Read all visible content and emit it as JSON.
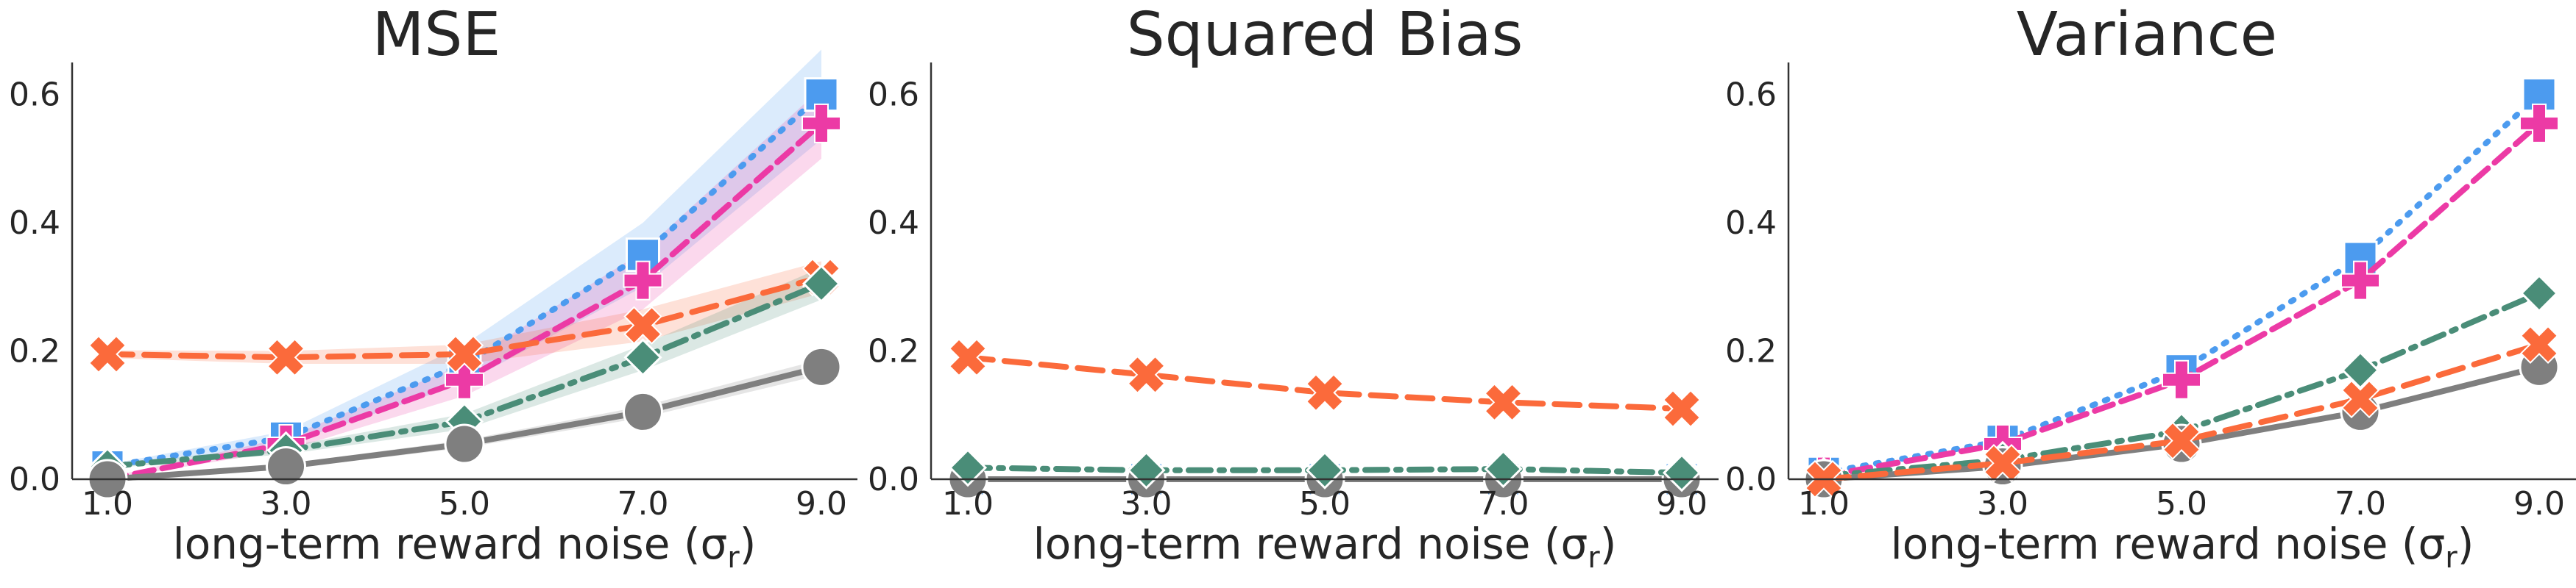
{
  "chart_data": [
    {
      "type": "line",
      "title": "MSE",
      "xlabel": "long-term reward noise (σ",
      "xlabel_sub": "r",
      "xlabel_close": ")",
      "x": [
        1.0,
        3.0,
        5.0,
        7.0,
        9.0
      ],
      "x_ticks": [
        "1.0",
        "3.0",
        "5.0",
        "7.0",
        "9.0"
      ],
      "y_ticks": [
        "0.0",
        "0.2",
        "0.4",
        "0.6"
      ],
      "y_tick_values": [
        0.0,
        0.2,
        0.4,
        0.6
      ],
      "ylim": [
        0,
        0.65
      ],
      "series": [
        {
          "color": "#4C9BEF",
          "dash": "dot",
          "marker": "square",
          "values": [
            0.02,
            0.065,
            0.18,
            0.35,
            0.6
          ],
          "band": [
            0.003,
            0.01,
            0.03,
            0.05,
            0.07
          ]
        },
        {
          "color": "#EC3AA5",
          "dash": "dash",
          "marker": "plus",
          "values": [
            0.0,
            0.055,
            0.155,
            0.31,
            0.555
          ],
          "band": [
            0.003,
            0.01,
            0.025,
            0.045,
            0.055
          ]
        },
        {
          "color": "#FB6A3B",
          "dash": "longdash",
          "marker": "x",
          "values": [
            0.195,
            0.19,
            0.195,
            0.24,
            0.315
          ],
          "band": [
            0.006,
            0.01,
            0.015,
            0.025,
            0.025
          ]
        },
        {
          "color": "#4A8D78",
          "dash": "dashdot",
          "marker": "diamond",
          "values": [
            0.02,
            0.045,
            0.09,
            0.19,
            0.305
          ],
          "band": [
            0.003,
            0.006,
            0.012,
            0.02,
            0.025
          ]
        },
        {
          "color": "#7F7F7F",
          "dash": "solid",
          "marker": "circle",
          "values": [
            0.0,
            0.02,
            0.055,
            0.105,
            0.175
          ],
          "band": [
            0.002,
            0.004,
            0.006,
            0.009,
            0.012
          ]
        }
      ]
    },
    {
      "type": "line",
      "title": "Squared Bias",
      "xlabel": "long-term reward noise (σ",
      "xlabel_sub": "r",
      "xlabel_close": ")",
      "x": [
        1.0,
        3.0,
        5.0,
        7.0,
        9.0
      ],
      "x_ticks": [
        "1.0",
        "3.0",
        "5.0",
        "7.0",
        "9.0"
      ],
      "y_ticks": [
        "0.0",
        "0.2",
        "0.4",
        "0.6"
      ],
      "y_tick_values": [
        0.0,
        0.2,
        0.4,
        0.6
      ],
      "ylim": [
        0,
        0.65
      ],
      "series": [
        {
          "color": "#4C9BEF",
          "dash": "dot",
          "marker": "square",
          "values": [
            0.0,
            0.0,
            0.0,
            0.0,
            0.0
          ]
        },
        {
          "color": "#EC3AA5",
          "dash": "dash",
          "marker": "plus",
          "values": [
            0.0,
            0.0,
            0.0,
            0.0,
            0.0
          ]
        },
        {
          "color": "#7F7F7F",
          "dash": "solid",
          "marker": "circle",
          "values": [
            0.0,
            0.0,
            0.0,
            0.0,
            0.0
          ]
        },
        {
          "color": "#4A8D78",
          "dash": "dashdot",
          "marker": "diamond",
          "values": [
            0.018,
            0.014,
            0.014,
            0.016,
            0.01
          ]
        },
        {
          "color": "#FB6A3B",
          "dash": "longdash",
          "marker": "x",
          "values": [
            0.19,
            0.163,
            0.135,
            0.12,
            0.11
          ]
        }
      ]
    },
    {
      "type": "line",
      "title": "Variance",
      "xlabel": "long-term reward noise (σ",
      "xlabel_sub": "r",
      "xlabel_close": ")",
      "x": [
        1.0,
        3.0,
        5.0,
        7.0,
        9.0
      ],
      "x_ticks": [
        "1.0",
        "3.0",
        "5.0",
        "7.0",
        "9.0"
      ],
      "y_ticks": [
        "0.0",
        "0.2",
        "0.4",
        "0.6"
      ],
      "y_tick_values": [
        0.0,
        0.2,
        0.4,
        0.6
      ],
      "ylim": [
        0,
        0.65
      ],
      "series": [
        {
          "color": "#4C9BEF",
          "dash": "dot",
          "marker": "square",
          "values": [
            0.01,
            0.06,
            0.17,
            0.345,
            0.6
          ]
        },
        {
          "color": "#EC3AA5",
          "dash": "dash",
          "marker": "plus",
          "values": [
            0.005,
            0.055,
            0.155,
            0.31,
            0.555
          ]
        },
        {
          "color": "#4A8D78",
          "dash": "dashdot",
          "marker": "diamond",
          "values": [
            0.005,
            0.03,
            0.075,
            0.17,
            0.29
          ]
        },
        {
          "color": "#7F7F7F",
          "dash": "solid",
          "marker": "circle",
          "values": [
            0.0,
            0.02,
            0.055,
            0.105,
            0.175
          ]
        },
        {
          "color": "#FB6A3B",
          "dash": "longdash",
          "marker": "x",
          "values": [
            0.0,
            0.025,
            0.06,
            0.125,
            0.21
          ]
        }
      ]
    }
  ]
}
